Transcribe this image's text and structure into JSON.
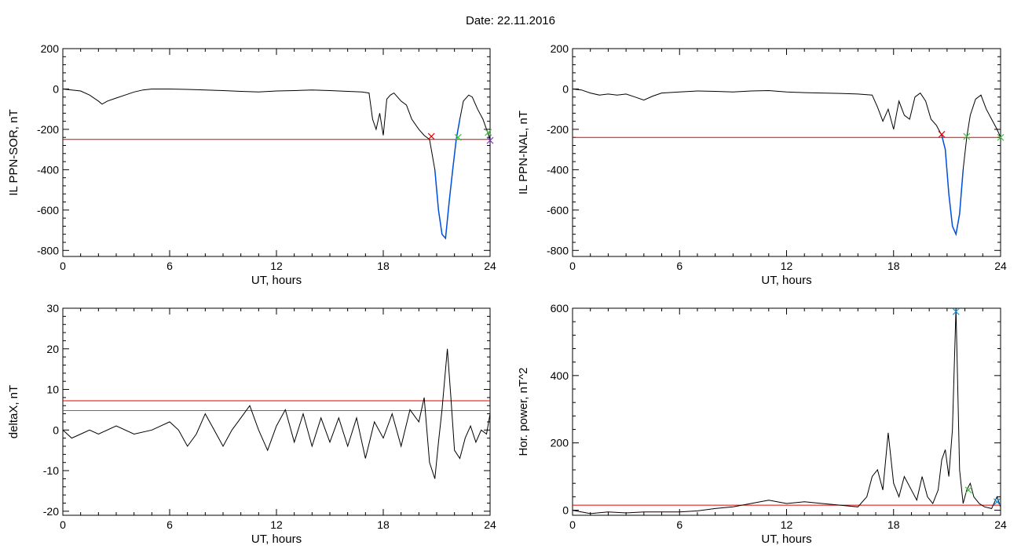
{
  "figure": {
    "title": "Date:  22.11.2016"
  },
  "colors": {
    "trace": "#000000",
    "threshold": "#e00000",
    "secondary": "#1e8aa0",
    "highlight": "#0050e0",
    "marker_green": "#40c040",
    "marker_purple": "#8040c0",
    "marker_blue": "#2090d0"
  },
  "chart_data": [
    {
      "type": "line",
      "title": "",
      "xlabel": "UT, hours",
      "ylabel": "IL PPN-SOR, nT",
      "xlim": [
        0,
        24
      ],
      "ylim": [
        -830,
        200
      ],
      "xticks": [
        0,
        6,
        12,
        18,
        24
      ],
      "yticks": [
        200,
        0,
        -200,
        -400,
        -600,
        -800
      ],
      "series": [
        {
          "x": [
            0,
            0.5,
            1,
            1.5,
            2,
            2.2,
            2.5,
            3,
            3.5,
            4,
            4.5,
            5,
            6,
            7,
            8,
            9,
            10,
            11,
            12,
            13,
            14,
            15,
            16,
            16.8,
            17.2,
            17.4,
            17.6,
            17.8,
            18,
            18.2,
            18.4,
            18.6,
            18.8,
            19,
            19.3,
            19.6,
            20,
            20.3,
            20.6,
            20.9,
            21.1,
            21.3,
            21.5,
            21.7,
            21.9,
            22.1,
            22.3,
            22.5,
            22.8,
            23,
            23.3,
            23.6,
            23.8,
            24
          ],
          "y": [
            0,
            -5,
            -10,
            -30,
            -60,
            -75,
            -60,
            -45,
            -30,
            -15,
            -5,
            0,
            0,
            -2,
            -5,
            -8,
            -12,
            -15,
            -10,
            -8,
            -5,
            -8,
            -12,
            -15,
            -20,
            -150,
            -200,
            -120,
            -230,
            -50,
            -30,
            -20,
            -40,
            -60,
            -80,
            -150,
            -200,
            -230,
            -250,
            -400,
            -600,
            -720,
            -740,
            -560,
            -400,
            -250,
            -150,
            -60,
            -30,
            -40,
            -100,
            -150,
            -200,
            -250
          ]
        }
      ],
      "threshold": -250,
      "highlight_range": [
        20.7,
        22.4
      ],
      "markers": [
        {
          "x": 20.7,
          "y": -235,
          "color": "red"
        },
        {
          "x": 22.2,
          "y": -240,
          "color": "green"
        },
        {
          "x": 23.9,
          "y": -215,
          "color": "green"
        },
        {
          "x": 24.0,
          "y": -255,
          "color": "purple"
        }
      ]
    },
    {
      "type": "line",
      "title": "",
      "xlabel": "UT, hours",
      "ylabel": "IL PPN-NAL, nT",
      "xlim": [
        0,
        24
      ],
      "ylim": [
        -830,
        200
      ],
      "xticks": [
        0,
        6,
        12,
        18,
        24
      ],
      "yticks": [
        200,
        0,
        -200,
        -400,
        -600,
        -800
      ],
      "series": [
        {
          "x": [
            0,
            0.5,
            1,
            1.5,
            2,
            2.5,
            3,
            3.5,
            4,
            4.5,
            5,
            6,
            7,
            8,
            9,
            10,
            11,
            12,
            13,
            14,
            15,
            16,
            16.8,
            17.1,
            17.4,
            17.7,
            18,
            18.3,
            18.6,
            18.9,
            19.2,
            19.5,
            19.8,
            20.1,
            20.4,
            20.7,
            20.9,
            21.1,
            21.3,
            21.5,
            21.7,
            21.9,
            22.1,
            22.3,
            22.6,
            22.9,
            23.2,
            23.5,
            23.8,
            24
          ],
          "y": [
            0,
            -5,
            -20,
            -30,
            -25,
            -30,
            -25,
            -40,
            -55,
            -35,
            -20,
            -15,
            -10,
            -12,
            -15,
            -10,
            -8,
            -15,
            -18,
            -20,
            -22,
            -25,
            -30,
            -90,
            -160,
            -100,
            -200,
            -60,
            -130,
            -150,
            -40,
            -20,
            -60,
            -150,
            -180,
            -230,
            -300,
            -520,
            -680,
            -720,
            -620,
            -400,
            -240,
            -130,
            -50,
            -30,
            -100,
            -150,
            -200,
            -240
          ]
        }
      ],
      "threshold": -240,
      "highlight_range": [
        20.6,
        22.0
      ],
      "markers": [
        {
          "x": 20.7,
          "y": -225,
          "color": "red"
        },
        {
          "x": 22.1,
          "y": -235,
          "color": "green"
        },
        {
          "x": 24.0,
          "y": -240,
          "color": "green"
        }
      ]
    },
    {
      "type": "line",
      "title": "",
      "xlabel": "UT, hours",
      "ylabel": "deltaX, nT",
      "xlim": [
        0,
        24
      ],
      "ylim": [
        -21,
        30
      ],
      "xticks": [
        0,
        6,
        12,
        18,
        24
      ],
      "yticks": [
        30,
        20,
        10,
        0,
        -10,
        -20
      ],
      "series": [
        {
          "x": [
            0,
            0.5,
            1,
            1.5,
            2,
            3,
            4,
            5,
            5.5,
            6,
            6.5,
            7,
            7.5,
            8,
            8.5,
            9,
            9.5,
            10,
            10.5,
            11,
            11.5,
            12,
            12.5,
            13,
            13.5,
            14,
            14.5,
            15,
            15.5,
            16,
            16.5,
            17,
            17.5,
            18,
            18.5,
            19,
            19.5,
            20,
            20.3,
            20.6,
            20.9,
            21.1,
            21.3,
            21.6,
            21.8,
            22,
            22.3,
            22.6,
            22.9,
            23.2,
            23.5,
            23.8,
            24
          ],
          "y": [
            0,
            -2,
            -1,
            0,
            -1,
            1,
            -1,
            0,
            1,
            2,
            0,
            -4,
            -1,
            4,
            0,
            -4,
            0,
            3,
            6,
            0,
            -5,
            1,
            5,
            -3,
            4,
            -4,
            3,
            -3,
            3,
            -4,
            3,
            -7,
            2,
            -2,
            4,
            -4,
            5,
            2,
            8,
            -8,
            -12,
            -3,
            5,
            20,
            8,
            -5,
            -7,
            -2,
            1,
            -3,
            0,
            -1,
            4
          ]
        }
      ],
      "thresholds": [
        7.2,
        4.8
      ]
    },
    {
      "type": "line",
      "title": "",
      "xlabel": "UT, hours",
      "ylabel": "Hor. power, nT^2",
      "xlim": [
        0,
        24
      ],
      "ylim": [
        -15,
        600
      ],
      "xticks": [
        0,
        6,
        12,
        18,
        24
      ],
      "yticks": [
        600,
        400,
        200,
        0
      ],
      "series": [
        {
          "x": [
            0,
            0.5,
            1,
            2,
            3,
            4,
            5,
            6,
            7,
            8,
            9,
            10,
            11,
            12,
            13,
            14,
            15,
            16,
            16.5,
            16.8,
            17.1,
            17.4,
            17.7,
            18,
            18.3,
            18.6,
            19,
            19.3,
            19.6,
            19.9,
            20.2,
            20.5,
            20.7,
            20.9,
            21.1,
            21.3,
            21.5,
            21.7,
            21.9,
            22.1,
            22.3,
            22.5,
            22.8,
            23.1,
            23.5,
            23.8,
            24
          ],
          "y": [
            0,
            -5,
            -10,
            -5,
            -8,
            -5,
            -5,
            -5,
            -2,
            5,
            10,
            20,
            30,
            20,
            25,
            20,
            15,
            10,
            40,
            100,
            120,
            60,
            230,
            80,
            40,
            100,
            60,
            30,
            100,
            40,
            20,
            60,
            150,
            180,
            100,
            240,
            600,
            120,
            20,
            60,
            80,
            40,
            20,
            10,
            5,
            40,
            10
          ]
        }
      ],
      "threshold": 15,
      "markers": [
        {
          "x": 21.5,
          "y": 590,
          "color": "blue"
        },
        {
          "x": 22.2,
          "y": 60,
          "color": "green"
        },
        {
          "x": 23.8,
          "y": 25,
          "color": "blue"
        }
      ]
    }
  ]
}
